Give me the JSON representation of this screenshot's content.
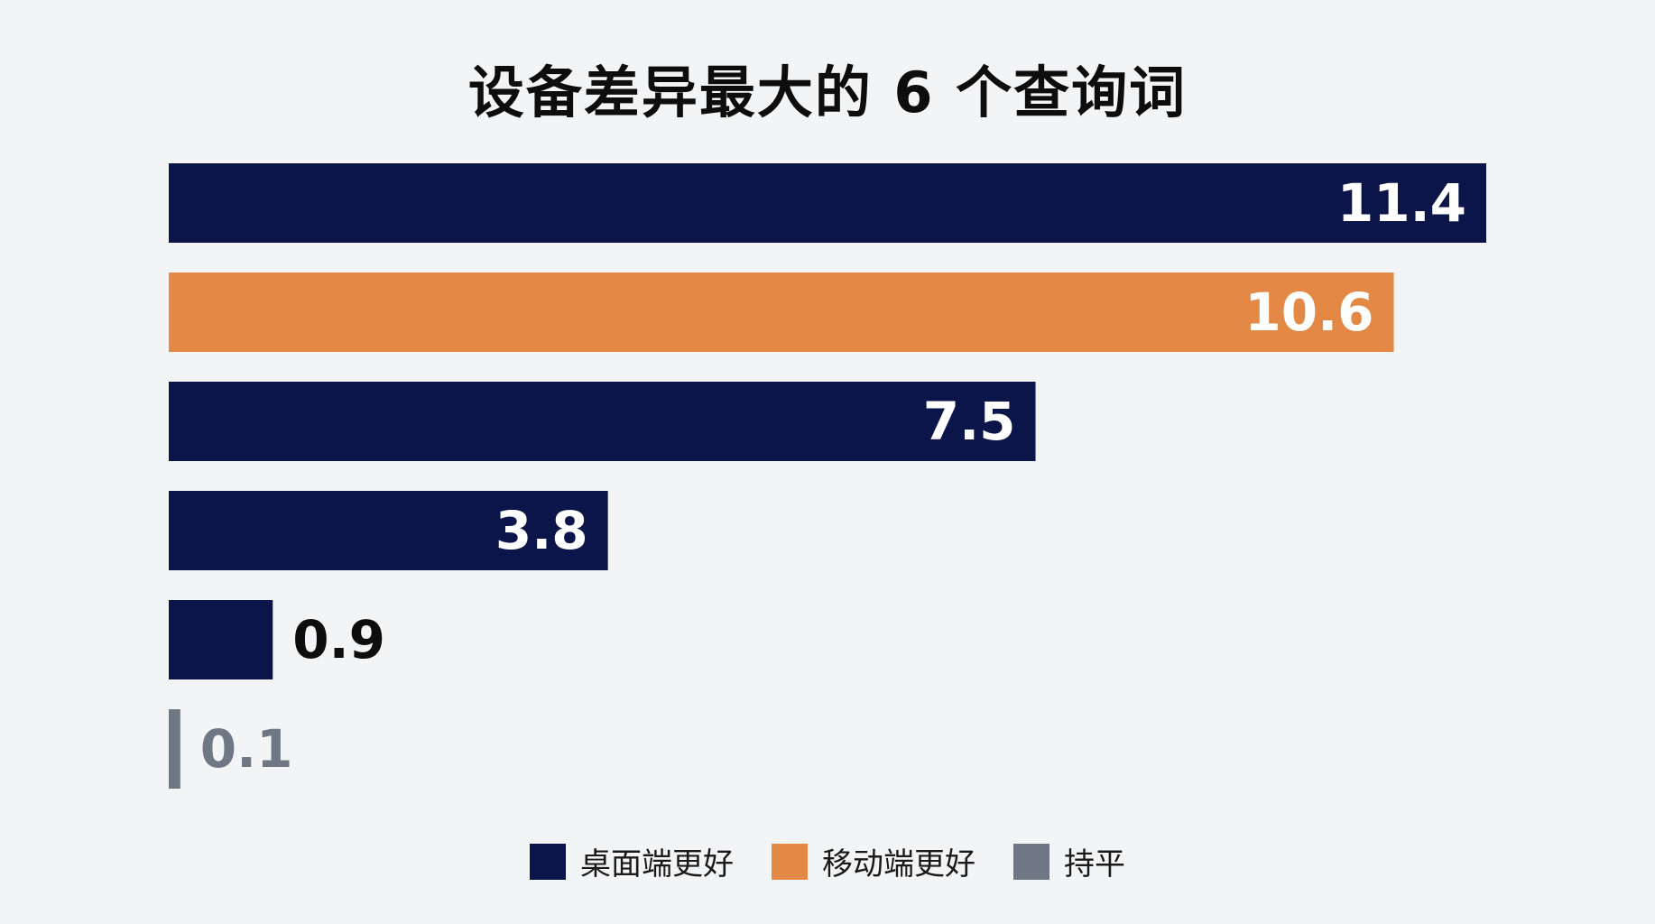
{
  "chart_data": {
    "type": "bar",
    "orientation": "horizontal",
    "title": "设备差异最大的 6 个查询词",
    "values": [
      11.4,
      10.6,
      7.5,
      3.8,
      0.9,
      0.1
    ],
    "value_labels": [
      "11.4",
      "10.6",
      "7.5",
      "3.8",
      "0.9",
      "0.1"
    ],
    "groups": [
      "desktop",
      "mobile",
      "desktop",
      "desktop",
      "desktop",
      "tie"
    ],
    "xlim": [
      0,
      11.4
    ],
    "grid": false,
    "legend_position": "bottom-center",
    "legend": [
      {
        "key": "desktop",
        "label": "桌面端更好",
        "color": "#0b154a"
      },
      {
        "key": "mobile",
        "label": "移动端更好",
        "color": "#e38945"
      },
      {
        "key": "tie",
        "label": "持平",
        "color": "#6f7785"
      }
    ]
  }
}
